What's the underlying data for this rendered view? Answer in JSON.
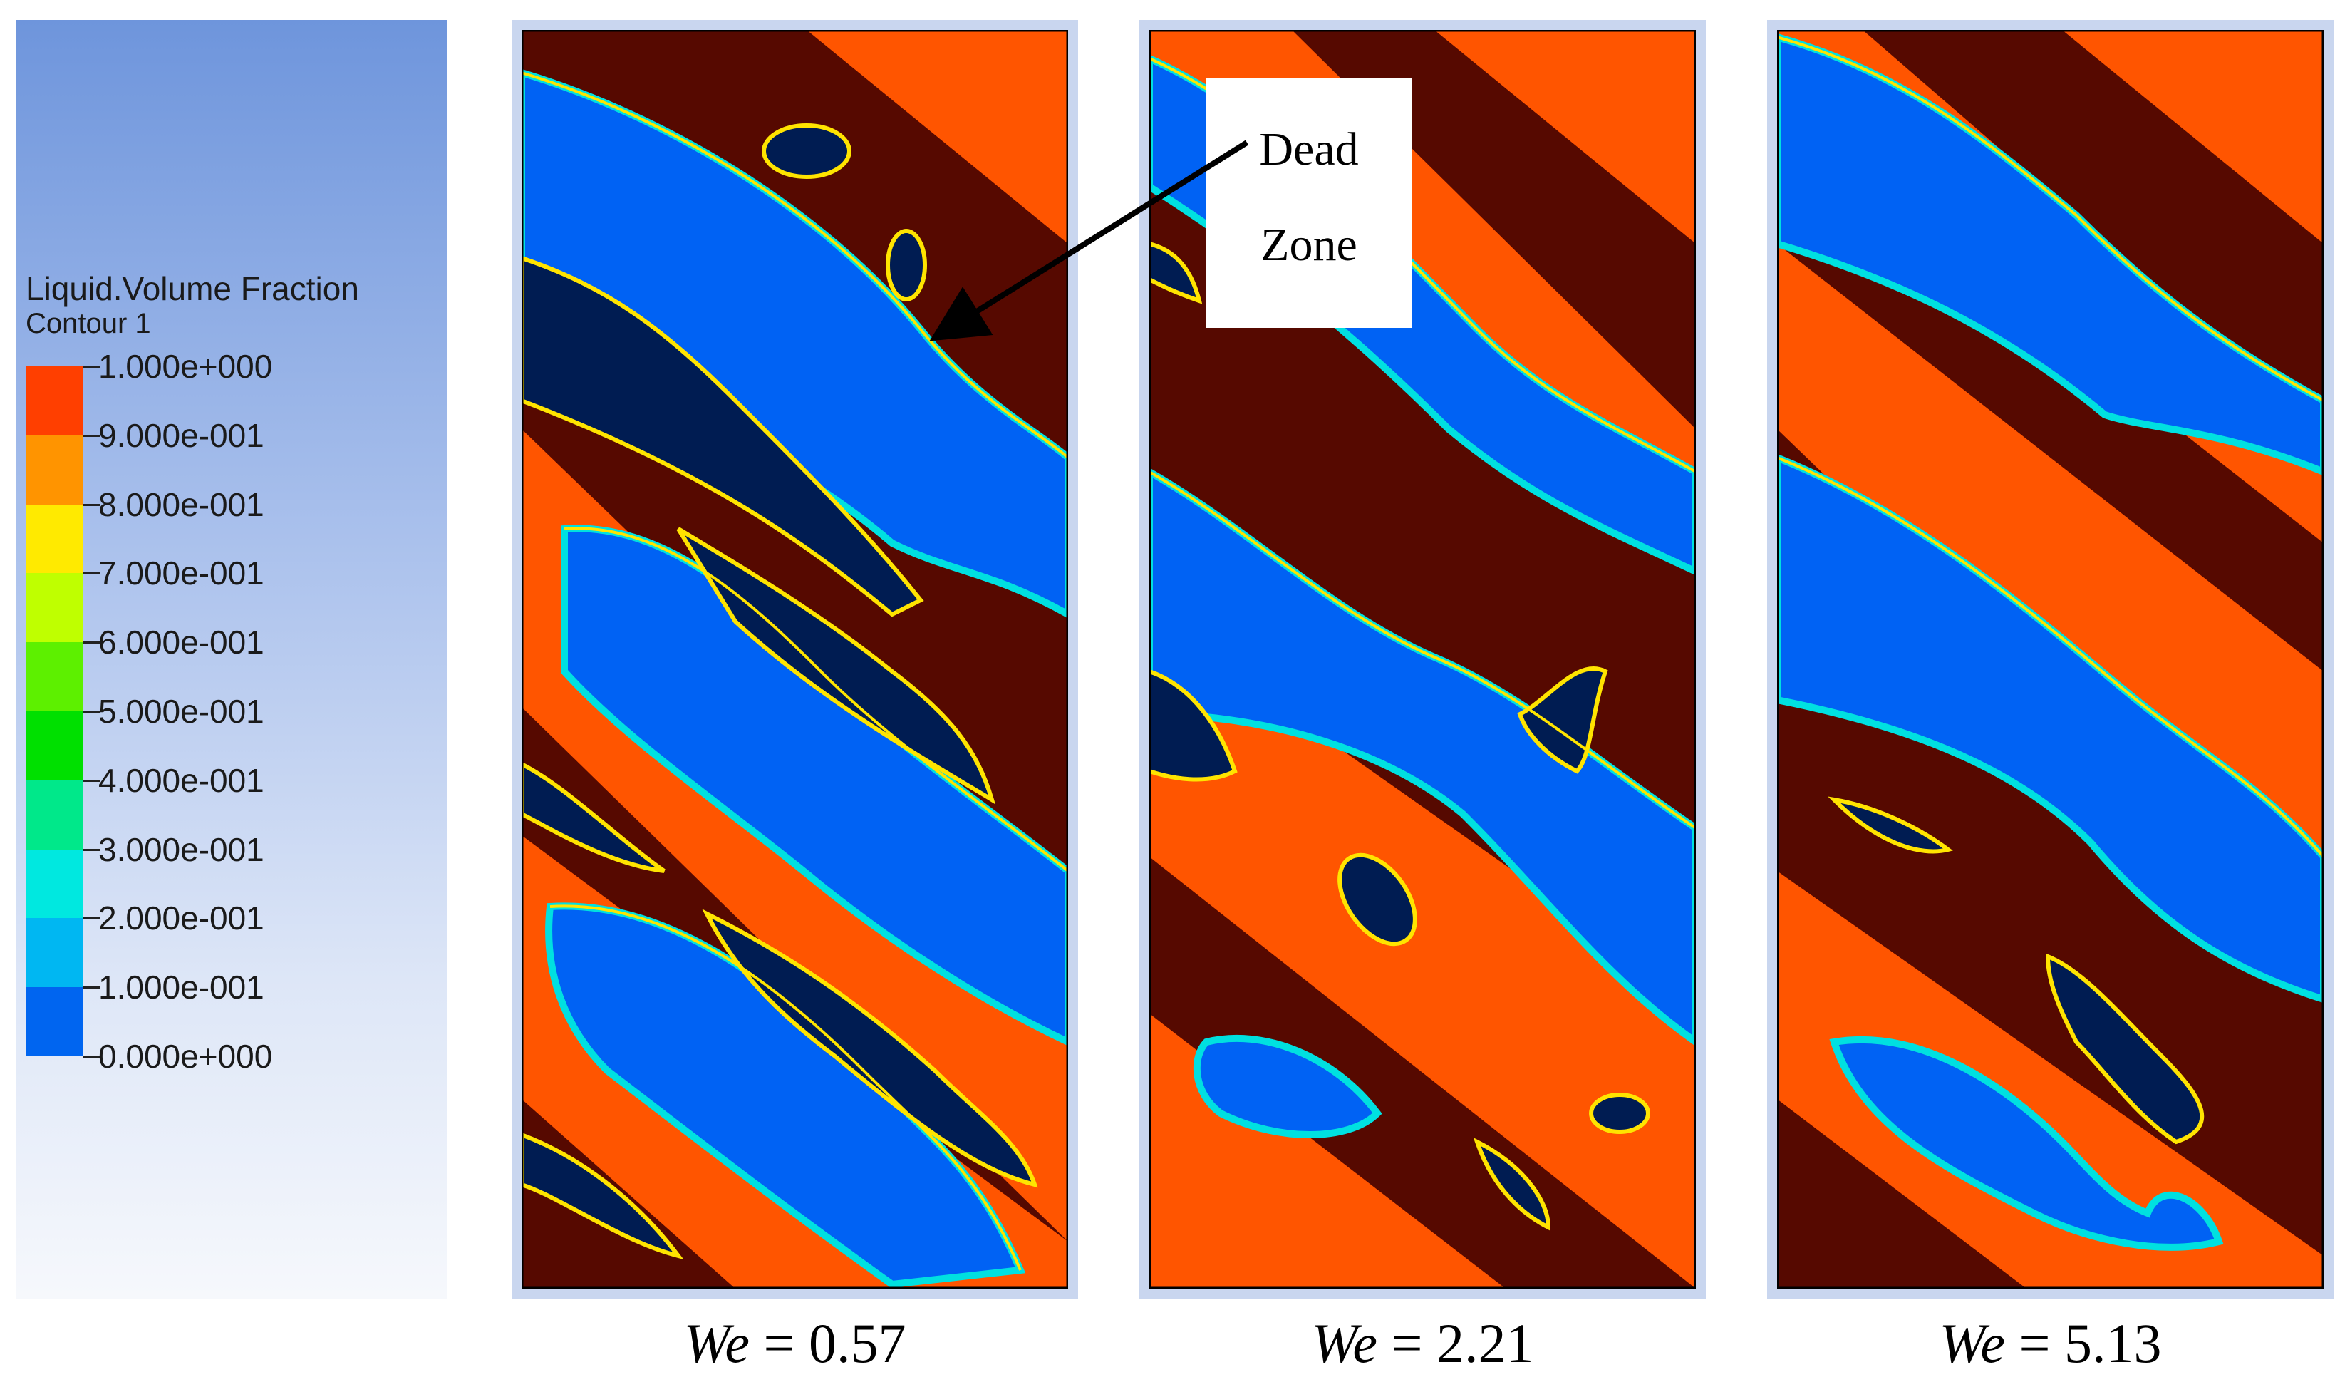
{
  "legend": {
    "title": "Liquid.Volume Fraction",
    "subtitle": "Contour 1",
    "labels": [
      "1.000e+000",
      "9.000e-001",
      "8.000e-001",
      "7.000e-001",
      "6.000e-001",
      "5.000e-001",
      "4.000e-001",
      "3.000e-001",
      "2.000e-001",
      "1.000e-001",
      "0.000e+000"
    ],
    "colors": [
      "#ff3f00",
      "#ff9400",
      "#ffea00",
      "#bfff00",
      "#5df000",
      "#00e000",
      "#00e88a",
      "#00e8e0",
      "#00b7f2",
      "#0065f0"
    ]
  },
  "phase_colors": {
    "liquid": "#ff5500",
    "dark_band": "#560900",
    "gas": "#0062f4",
    "dead_zone": "#001c52",
    "interface": "#ffe400"
  },
  "panels": [
    {
      "we_symbol": "We",
      "we_value": "= 0.57"
    },
    {
      "we_symbol": "We",
      "we_value": "= 2.21"
    },
    {
      "we_symbol": "We",
      "we_value": "= 5.13"
    }
  ],
  "annotation": {
    "line1": "Dead",
    "line2": "Zone"
  }
}
